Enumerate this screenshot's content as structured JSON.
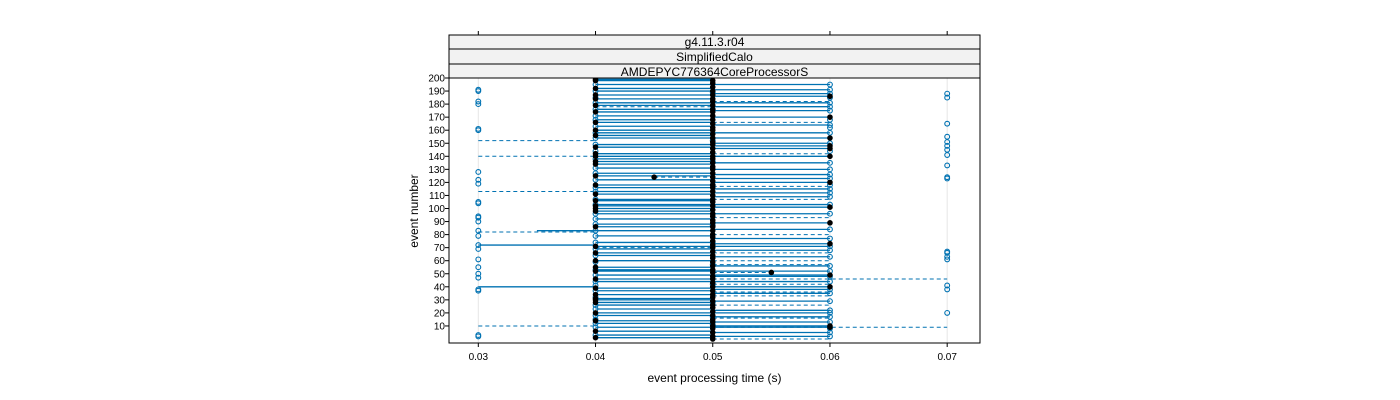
{
  "chart_data": {
    "type": "scatter",
    "strips": [
      "g4.11.3.r04",
      "SimplifiedCalo",
      "AMDEPYC776364CoreProcessorS"
    ],
    "xlabel": "event processing time (s)",
    "ylabel": "event number",
    "xlim": [
      0.0275,
      0.0728
    ],
    "ylim": [
      0,
      200
    ],
    "x_ticks": [
      "0.03",
      "0.04",
      "0.05",
      "0.06",
      "0.07"
    ],
    "y_ticks": [
      "10",
      "20",
      "30",
      "40",
      "50",
      "60",
      "70",
      "80",
      "90",
      "100",
      "110",
      "120",
      "130",
      "140",
      "150",
      "160",
      "170",
      "180",
      "190",
      "200"
    ],
    "grid": "vertical at x ticks",
    "colors": {
      "open_points": "#0072b2",
      "filled_points": "#000000",
      "lines": "#0072b2",
      "strip_bg": "#f2f2f2",
      "grid": "#e6e6e6"
    },
    "open_points": [
      {
        "x": 0.03,
        "y": [
          2,
          3,
          37,
          38,
          47,
          50,
          55,
          61,
          69,
          72,
          79,
          83,
          90,
          93,
          94,
          104,
          105,
          119,
          122,
          128,
          160,
          161,
          180,
          182,
          190,
          191
        ]
      },
      {
        "x": 0.04,
        "y": [
          3,
          9,
          12,
          15,
          18,
          23,
          26,
          32,
          37,
          41,
          44,
          49,
          53,
          59,
          64,
          69,
          74,
          79,
          83,
          88,
          92,
          96,
          103,
          107,
          113,
          116,
          122,
          127,
          131,
          138,
          144,
          149,
          154,
          158,
          163,
          168,
          171,
          176,
          181,
          185,
          190,
          195
        ]
      },
      {
        "x": 0.05,
        "y": [
          11,
          17,
          28,
          42,
          57,
          74,
          87,
          118,
          136,
          152,
          176,
          189
        ]
      },
      {
        "x": 0.06,
        "y": [
          2,
          5,
          8,
          13,
          17,
          20,
          22,
          29,
          35,
          38,
          44,
          48,
          52,
          56,
          63,
          68,
          71,
          77,
          84,
          96,
          103,
          109,
          112,
          115,
          118,
          123,
          126,
          130,
          135,
          144,
          150,
          158,
          162,
          164,
          168,
          175,
          178,
          181,
          185,
          188,
          191,
          195
        ]
      },
      {
        "x": 0.07,
        "y": [
          20,
          38,
          41,
          61,
          63,
          66,
          67,
          123,
          124,
          133,
          141,
          145,
          148,
          151,
          155,
          165,
          185,
          188
        ]
      }
    ],
    "filled_points": [
      {
        "x": 0.04,
        "y": [
          1,
          6,
          14,
          20,
          28,
          30,
          31,
          34,
          39,
          46,
          52,
          55,
          60,
          66,
          71,
          86,
          98,
          100,
          102,
          106,
          111,
          118,
          125,
          134,
          136,
          140,
          142,
          147,
          156,
          160,
          166,
          174,
          179,
          184,
          187,
          192,
          198,
          199
        ]
      },
      {
        "x": 0.05,
        "y": [
          0,
          2,
          5,
          8,
          10,
          13,
          15,
          18,
          21,
          24,
          26,
          29,
          32,
          34,
          37,
          40,
          43,
          46,
          48,
          51,
          53,
          56,
          59,
          62,
          64,
          67,
          70,
          72,
          75,
          78,
          80,
          83,
          86,
          89,
          91,
          94,
          96,
          99,
          102,
          105,
          107,
          110,
          113,
          116,
          118,
          121,
          124,
          127,
          130,
          132,
          135,
          138,
          140,
          143,
          146,
          149,
          151,
          154,
          157,
          160,
          162,
          165,
          168,
          171,
          174,
          176,
          179,
          182,
          184,
          187,
          190,
          193,
          196,
          198
        ]
      },
      {
        "x": 0.06,
        "y": [
          9,
          10,
          40,
          49,
          73,
          89,
          101,
          120,
          140,
          146,
          148,
          154,
          170,
          186
        ]
      },
      {
        "x": 0.045,
        "y": [
          124
        ]
      },
      {
        "x": 0.055,
        "y": [
          51
        ]
      }
    ],
    "segments": [
      {
        "x0": 0.04,
        "x1": 0.05,
        "y": [
          1,
          3,
          6,
          9,
          12,
          14,
          18,
          20,
          23,
          26,
          28,
          30,
          31,
          34,
          37,
          39,
          44,
          46,
          49,
          52,
          53,
          55,
          60,
          64,
          66,
          69,
          71,
          74,
          79,
          83,
          86,
          88,
          92,
          96,
          98,
          100,
          102,
          103,
          106,
          107,
          111,
          113,
          116,
          118,
          122,
          125,
          127,
          131,
          134,
          136,
          138,
          140,
          142,
          147,
          149,
          154,
          156,
          158,
          160,
          163,
          166,
          168,
          171,
          174,
          176,
          179,
          181,
          184,
          187,
          190,
          192,
          195,
          198,
          199
        ]
      },
      {
        "x0": 0.05,
        "x1": 0.06,
        "y": [
          2,
          5,
          9,
          10,
          13,
          17,
          20,
          22,
          29,
          35,
          38,
          40,
          44,
          48,
          49,
          52,
          56,
          63,
          68,
          71,
          73,
          77,
          84,
          89,
          96,
          101,
          103,
          109,
          112,
          115,
          120,
          123,
          126,
          130,
          135,
          140,
          146,
          148,
          150,
          154,
          158,
          164,
          170,
          175,
          178,
          181,
          186,
          188,
          191,
          195
        ]
      },
      {
        "x0": 0.03,
        "x1": 0.04,
        "y": [
          40,
          72
        ]
      },
      {
        "x0": 0.035,
        "x1": 0.04,
        "y": [
          83
        ]
      }
    ],
    "dashed_segments": [
      {
        "x0": 0.03,
        "x1": 0.04,
        "y": [
          10,
          82,
          113,
          140,
          152
        ]
      },
      {
        "x0": 0.05,
        "x1": 0.07,
        "y": [
          9,
          46
        ]
      },
      {
        "x0": 0.05,
        "x1": 0.06,
        "y": [
          0,
          16,
          26,
          33,
          36,
          42,
          57,
          60,
          66,
          80,
          93,
          107,
          117,
          142,
          166,
          182
        ]
      },
      {
        "x0": 0.04,
        "x1": 0.05,
        "y": [
          70,
          178
        ]
      },
      {
        "x0": 0.045,
        "x1": 0.05,
        "y": [
          124
        ]
      },
      {
        "x0": 0.05,
        "x1": 0.055,
        "y": [
          51
        ]
      }
    ]
  }
}
